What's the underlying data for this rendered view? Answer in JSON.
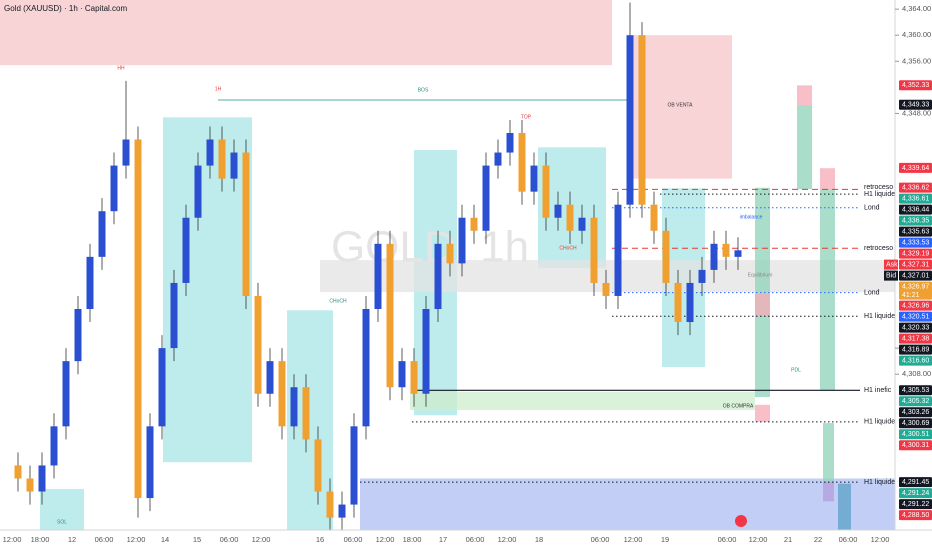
{
  "chart_data": {
    "type": "candlestick",
    "title": "Gold (XAUUSD) · 1h · Capital.com",
    "watermark": "GOLD, 1h",
    "ylim": [
      4284.1,
      4365.4
    ],
    "yticks": [
      {
        "value": 4364,
        "label": "4,364.00"
      },
      {
        "value": 4360,
        "label": "4,360.00"
      },
      {
        "value": 4356,
        "label": "4,356.00"
      },
      {
        "value": 4348,
        "label": "4,348.00"
      },
      {
        "value": 4312,
        "label": "4,312.00"
      },
      {
        "value": 4308,
        "label": "4,308.00"
      }
    ],
    "x_labels": [
      "12:00",
      "18:00",
      "12",
      "06:00",
      "12:00",
      "14",
      "15",
      "06:00",
      "12:00",
      "16",
      "06:00",
      "12:00",
      "18:00",
      "17",
      "06:00",
      "12:00",
      "18",
      "06:00",
      "12:00",
      "19",
      "06:00",
      "12:00",
      "21",
      "22",
      "06:00",
      "12:00"
    ],
    "up_color": "#2a4fd0",
    "down_color": "#f0a030",
    "open": [
      4294,
      4292,
      4290,
      4294,
      4300,
      4310,
      4318,
      4326,
      4333,
      4340,
      4344,
      4289,
      4300,
      4312,
      4322,
      4332,
      4340,
      4344,
      4338,
      4342,
      4320,
      4305,
      4310,
      4300,
      4306,
      4298,
      4290,
      4286,
      4288,
      4300,
      4318,
      4328,
      4306,
      4310,
      4305,
      4318,
      4328,
      4325,
      4332,
      4330,
      4340,
      4342,
      4345,
      4336,
      4340,
      4332,
      4334,
      4330,
      4332,
      4322,
      4320,
      4334,
      4360,
      4334,
      4330,
      4322,
      4316,
      4322,
      4324,
      4328,
      4326
    ],
    "high": [
      4296,
      4294,
      4296,
      4302,
      4312,
      4320,
      4328,
      4335,
      4342,
      4353,
      4346,
      4302,
      4314,
      4324,
      4334,
      4342,
      4346,
      4346,
      4344,
      4344,
      4322,
      4312,
      4312,
      4308,
      4308,
      4300,
      4292,
      4290,
      4302,
      4320,
      4330,
      4330,
      4312,
      4312,
      4320,
      4330,
      4330,
      4334,
      4334,
      4342,
      4344,
      4347,
      4347,
      4342,
      4342,
      4336,
      4336,
      4334,
      4334,
      4324,
      4336,
      4365,
      4362,
      4336,
      4332,
      4324,
      4324,
      4326,
      4330,
      4330,
      4329
    ],
    "low": [
      4290,
      4288,
      4288,
      4292,
      4298,
      4308,
      4316,
      4324,
      4331,
      4338,
      4286,
      4287,
      4298,
      4310,
      4320,
      4330,
      4338,
      4336,
      4336,
      4318,
      4303,
      4303,
      4298,
      4298,
      4296,
      4288,
      4284,
      4284,
      4286,
      4298,
      4316,
      4304,
      4304,
      4303,
      4303,
      4316,
      4323,
      4323,
      4328,
      4328,
      4338,
      4340,
      4334,
      4334,
      4330,
      4330,
      4328,
      4328,
      4320,
      4318,
      4318,
      4332,
      4332,
      4328,
      4320,
      4314,
      4314,
      4320,
      4322,
      4324,
      4324
    ],
    "close": [
      4292,
      4290,
      4294,
      4300,
      4310,
      4318,
      4326,
      4333,
      4340,
      4344,
      4289,
      4300,
      4312,
      4322,
      4332,
      4340,
      4344,
      4338,
      4342,
      4320,
      4305,
      4310,
      4300,
      4306,
      4298,
      4290,
      4286,
      4288,
      4300,
      4318,
      4328,
      4306,
      4310,
      4305,
      4318,
      4328,
      4325,
      4332,
      4330,
      4340,
      4342,
      4345,
      4336,
      4340,
      4332,
      4334,
      4330,
      4332,
      4322,
      4320,
      4334,
      4360,
      4334,
      4330,
      4322,
      4316,
      4322,
      4324,
      4328,
      4326,
      4327
    ],
    "zones": [
      {
        "top": 4365.4,
        "bottom": 4355.4,
        "color": "#f7c5c8"
      },
      {
        "top": 4360,
        "bottom": 4338,
        "color": "#f7c5c8"
      },
      {
        "top": 4292,
        "bottom": 4284.1,
        "color": "#aebdf2"
      },
      {
        "top": 4347.4,
        "bottom": 4294.5,
        "color": "#a8e6e6"
      },
      {
        "top": 4317.8,
        "bottom": 4284.1,
        "color": "#a8e6e6"
      },
      {
        "top": 4342.4,
        "bottom": 4301.7,
        "color": "#a8e6e6"
      },
      {
        "top": 4342.8,
        "bottom": 4324.3,
        "color": "#a8e6e6"
      },
      {
        "top": 4336.5,
        "bottom": 4309.1,
        "color": "#a8e6e6"
      },
      {
        "top": 4290.4,
        "bottom": 4284.1,
        "color": "#a8e6e6"
      },
      {
        "top": 4305.3,
        "bottom": 4302.5,
        "color": "#cdeccd"
      },
      {
        "top": 4325.5,
        "bottom": 4320.6,
        "color": "#e3e3e3"
      },
      {
        "top": 4336.6,
        "bottom": 4304.5,
        "color": "#8fd3b8"
      },
      {
        "top": 4349.3,
        "bottom": 4336.4,
        "color": "#8fd3b8"
      },
      {
        "top": 4336.4,
        "bottom": 4305.5,
        "color": "#8fd3b8"
      },
      {
        "top": 4352.3,
        "bottom": 4349.3,
        "color": "#f5a9b5"
      },
      {
        "top": 4339.6,
        "bottom": 4336.4,
        "color": "#f5a9b5"
      },
      {
        "top": 4320.3,
        "bottom": 4316.9,
        "color": "#f5a9b5"
      },
      {
        "top": 4303.3,
        "bottom": 4300.7,
        "color": "#f5a9b5"
      },
      {
        "top": 4300.5,
        "bottom": 4291.5,
        "color": "#8fd3b8"
      },
      {
        "top": 4291.5,
        "bottom": 4288.5,
        "color": "#b39ddb"
      },
      {
        "top": 4291.2,
        "bottom": 4284.1,
        "color": "#5aa0c8"
      }
    ],
    "levels": [
      {
        "value": 4336.35,
        "label": "retroceso h1",
        "color": "#e53935",
        "style": "dashed"
      },
      {
        "value": 4335.63,
        "label": "H1 liquidez",
        "color": "#131722",
        "style": "dotted"
      },
      {
        "value": 4333.53,
        "label": "Lond",
        "color": "#2962ff",
        "style": "dotted"
      },
      {
        "value": 4327.31,
        "label": "retroceso",
        "color": "#e53935",
        "style": "dashed"
      },
      {
        "value": 4320.51,
        "label": "Lond",
        "color": "#2962ff",
        "style": "dotted"
      },
      {
        "value": 4316.89,
        "label": "H1 liquidez",
        "color": "#131722",
        "style": "dotted"
      },
      {
        "value": 4305.53,
        "label": "H1 inefic",
        "color": "#131722",
        "style": "solid"
      },
      {
        "value": 4300.69,
        "label": "H1 liquidez",
        "color": "#131722",
        "style": "dotted"
      },
      {
        "value": 4291.45,
        "label": "H1 liquidez",
        "color": "#131722",
        "style": "dotted"
      }
    ],
    "annotations": [
      "HH",
      "1H",
      "BOS",
      "OB VENTA",
      "OB COMPRA",
      "imbalance",
      "Equilibrium",
      "PDL",
      "CHoCH",
      "CHoCH",
      "TOP",
      "SOL"
    ],
    "price_labels": [
      {
        "value": 4352.33,
        "label": "4,352.33",
        "color": "#f23645"
      },
      {
        "value": 4349.33,
        "label": "4,349.33",
        "color": "#131722"
      },
      {
        "value": 4339.64,
        "label": "4,339.64",
        "color": "#f23645"
      },
      {
        "value": 4336.62,
        "label": "4,336.62",
        "color": "#f23645"
      },
      {
        "value": 4336.61,
        "label": "4,336.61",
        "color": "#22ab94"
      },
      {
        "value": 4336.44,
        "label": "4,336.44",
        "color": "#131722"
      },
      {
        "value": 4336.35,
        "label": "4,336.35",
        "color": "#22ab94"
      },
      {
        "value": 4335.63,
        "label": "4,335.63",
        "color": "#131722"
      },
      {
        "value": 4333.53,
        "label": "4,333.53",
        "color": "#2962ff"
      },
      {
        "value": 4329.19,
        "label": "4,329.19",
        "color": "#f23645"
      },
      {
        "value": 4327.31,
        "label": "4,327.31",
        "color": "#f23645",
        "tag": "Ask"
      },
      {
        "value": 4327.01,
        "label": "4,327.01",
        "color": "#131722",
        "tag": "Bid"
      },
      {
        "value": 4326.97,
        "label": "4,326.97",
        "color": "#f0a030",
        "sub": "41:21"
      },
      {
        "value": 4326.96,
        "label": "4,326.96",
        "color": "#f23645"
      },
      {
        "value": 4320.51,
        "label": "4,320.51",
        "color": "#2962ff"
      },
      {
        "value": 4320.33,
        "label": "4,320.33",
        "color": "#131722"
      },
      {
        "value": 4317.38,
        "label": "4,317.38",
        "color": "#f23645"
      },
      {
        "value": 4316.89,
        "label": "4,316.89",
        "color": "#131722"
      },
      {
        "value": 4316.6,
        "label": "4,316.60",
        "color": "#22ab94"
      },
      {
        "value": 4305.53,
        "label": "4,305.53",
        "color": "#131722"
      },
      {
        "value": 4305.32,
        "label": "4,305.32",
        "color": "#22ab94"
      },
      {
        "value": 4303.26,
        "label": "4,303.26",
        "color": "#131722"
      },
      {
        "value": 4300.69,
        "label": "4,300.69",
        "color": "#131722"
      },
      {
        "value": 4300.51,
        "label": "4,300.51",
        "color": "#22ab94"
      },
      {
        "value": 4300.31,
        "label": "4,300.31",
        "color": "#f23645"
      },
      {
        "value": 4291.45,
        "label": "4,291.45",
        "color": "#131722"
      },
      {
        "value": 4291.24,
        "label": "4,291.24",
        "color": "#22ab94"
      },
      {
        "value": 4291.22,
        "label": "4,291.22",
        "color": "#131722"
      },
      {
        "value": 4288.5,
        "label": "4,288.50",
        "color": "#f23645"
      }
    ]
  }
}
